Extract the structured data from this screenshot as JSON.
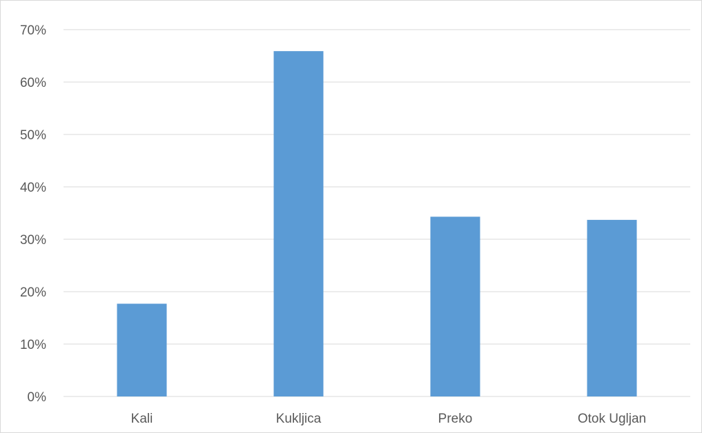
{
  "chart_data": {
    "type": "bar",
    "categories": [
      "Kali",
      "Kukljica",
      "Preko",
      "Otok Ugljan"
    ],
    "values": [
      17.7,
      65.9,
      34.3,
      33.7
    ],
    "ylim": [
      0,
      70
    ],
    "y_ticks": [
      0,
      10,
      20,
      30,
      40,
      50,
      60,
      70
    ],
    "y_tick_labels": [
      "0%",
      "10%",
      "20%",
      "30%",
      "40%",
      "50%",
      "60%",
      "70%"
    ],
    "title": "",
    "xlabel": "",
    "ylabel": "",
    "grid": true,
    "legend": "none",
    "bar_color": "#5b9bd5"
  }
}
